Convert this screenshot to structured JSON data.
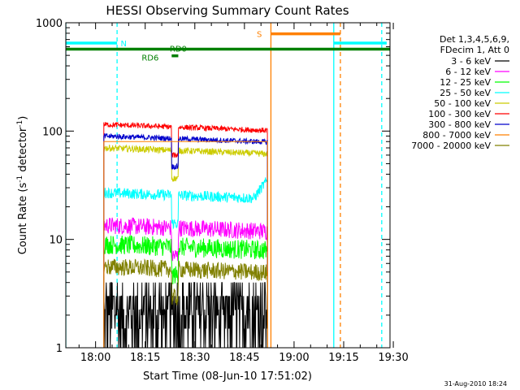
{
  "chart_data": {
    "type": "line",
    "title": "HESSI Observing Summary Count Rates",
    "xlabel": "Start Time (08-Jun-10 17:51:02)",
    "ylabel_main": "Count Rate (s",
    "ylabel_sup1": "-1",
    "ylabel_mid": " detector",
    "ylabel_sup2": "-1",
    "ylabel_end": ")",
    "yscale": "log",
    "xlim_min": [
      -9,
      89
    ],
    "ylim": [
      1,
      1000
    ],
    "x_tick_labels": [
      {
        "min": 0,
        "label": "18:00"
      },
      {
        "min": 15,
        "label": "18:15"
      },
      {
        "min": 30,
        "label": "18:30"
      },
      {
        "min": 45,
        "label": "18:45"
      },
      {
        "min": 60,
        "label": "19:00"
      },
      {
        "min": 75,
        "label": "19:15"
      },
      {
        "min": 90,
        "label": "19:30"
      }
    ],
    "y_tick_labels": [
      {
        "value": 1,
        "label": "1"
      },
      {
        "value": 10,
        "label": "10"
      },
      {
        "value": 100,
        "label": "100"
      },
      {
        "value": 1000,
        "label": "1000"
      }
    ],
    "legend": {
      "placement": "right",
      "header": [
        "Det 1,3,4,5,6,9,",
        "FDecim 1, Att 0"
      ]
    },
    "series": [
      {
        "name": "3 - 6 keV",
        "color": "#000000",
        "level": 2.6,
        "noise": 0.5
      },
      {
        "name": "6 - 12 keV",
        "color": "#ff00ff",
        "level": 13.5,
        "noise": 0.08
      },
      {
        "name": "12 - 25 keV",
        "color": "#00ff00",
        "level": 9.0,
        "noise": 0.09
      },
      {
        "name": "25 - 50 keV",
        "color": "#00ffff",
        "level": 27,
        "noise": 0.05
      },
      {
        "name": "50 - 100 keV",
        "color": "#cccc00",
        "level": 70,
        "noise": 0.03
      },
      {
        "name": "100 - 300 keV",
        "color": "#ff0000",
        "level": 115,
        "noise": 0.025
      },
      {
        "name": "300 - 800 keV",
        "color": "#0000cc",
        "level": 90,
        "noise": 0.025
      },
      {
        "name": "800 - 7000 keV",
        "color": "#ff8000",
        "level": 80,
        "noise": 0.02
      },
      {
        "name": "7000 - 20000 keV",
        "color": "#808000",
        "level": 5.6,
        "noise": 0.08
      }
    ],
    "data_window_min": [
      2.5,
      52
    ],
    "dip_min": [
      23,
      25
    ],
    "annotations": [
      {
        "text": "N",
        "color": "#00ffff",
        "x_min": 8.5,
        "y": 650
      },
      {
        "text": "RD0",
        "color": "#008000",
        "x_min": 25,
        "y": 580
      },
      {
        "text": "RD6",
        "color": "#008000",
        "x_min": 16.5,
        "y": 480
      },
      {
        "text": "S",
        "color": "#ff8000",
        "x_min": 49.5,
        "y": 790
      }
    ],
    "status_bars": [
      {
        "label": "night",
        "color": "#00ffff",
        "y": 650,
        "segments": [
          [
            -9,
            6.5
          ],
          [
            72,
            88
          ]
        ]
      },
      {
        "label": "saa",
        "color": "#ff8000",
        "y": 790,
        "segments": [
          [
            53,
            74
          ]
        ]
      },
      {
        "label": "rd0",
        "color": "#008000",
        "y": 570,
        "segments": [
          [
            -9,
            89
          ]
        ]
      },
      {
        "label": "rd6",
        "color": "#008000",
        "y": 495,
        "segments": [
          [
            23,
            25
          ]
        ]
      }
    ],
    "vertical_lines": [
      {
        "color": "#00ffff",
        "x_min": -9,
        "dashed": false
      },
      {
        "color": "#00ffff",
        "x_min": 6.5,
        "dashed": true
      },
      {
        "color": "#00ffff",
        "x_min": 72,
        "dashed": false
      },
      {
        "color": "#00ffff",
        "x_min": 86.5,
        "dashed": true
      },
      {
        "color": "#ff8000",
        "x_min": 53,
        "dashed": false
      },
      {
        "color": "#ff8000",
        "x_min": 74,
        "dashed": true
      }
    ]
  },
  "footer_date": "31-Aug-2010 18:24"
}
